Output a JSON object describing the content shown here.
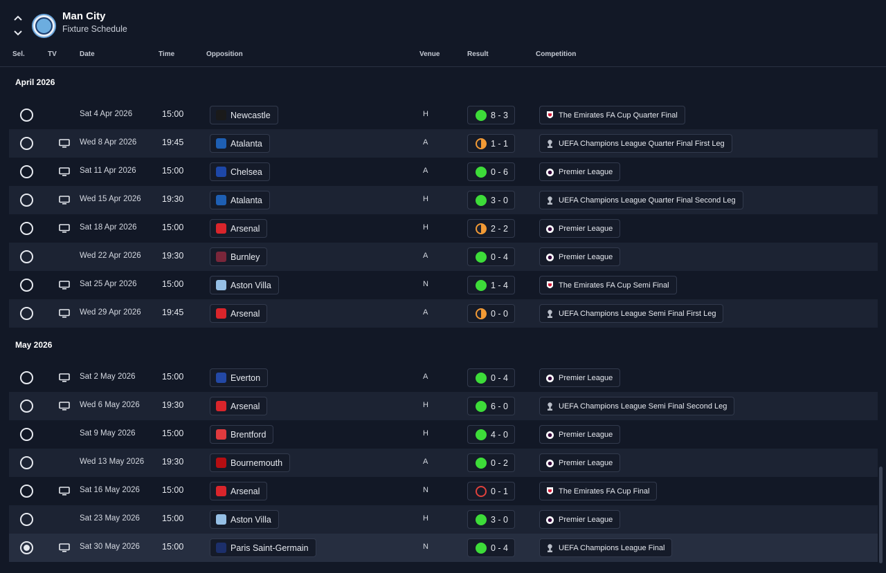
{
  "header": {
    "club_name": "Man City",
    "page_title": "Fixture Schedule"
  },
  "columns": {
    "sel": "Sel.",
    "tv": "TV",
    "date": "Date",
    "time": "Time",
    "opposition": "Opposition",
    "venue": "Venue",
    "result": "Result",
    "competition": "Competition"
  },
  "months": [
    {
      "label": "April 2026",
      "fixtures": [
        {
          "tv": false,
          "date": "Sat 4 Apr 2026",
          "time": "15:00",
          "opponent": "Newcastle",
          "crest": "#1a1a1a",
          "venue": "H",
          "outcome": "win",
          "score": "8 - 3",
          "competition": "The Emirates FA Cup Quarter Final",
          "comp_icon": "fa-cup-icon"
        },
        {
          "tv": true,
          "date": "Wed 8 Apr 2026",
          "time": "19:45",
          "opponent": "Atalanta",
          "crest": "#1e5fb3",
          "venue": "A",
          "outcome": "draw",
          "score": "1 - 1",
          "competition": "UEFA Champions League Quarter Final First Leg",
          "comp_icon": "ucl-trophy-icon"
        },
        {
          "tv": true,
          "date": "Sat 11 Apr 2026",
          "time": "15:00",
          "opponent": "Chelsea",
          "crest": "#1d47a8",
          "venue": "A",
          "outcome": "win",
          "score": "0 - 6",
          "competition": "Premier League",
          "comp_icon": "premier-league-icon"
        },
        {
          "tv": true,
          "date": "Wed 15 Apr 2026",
          "time": "19:30",
          "opponent": "Atalanta",
          "crest": "#1e5fb3",
          "venue": "H",
          "outcome": "win",
          "score": "3 - 0",
          "competition": "UEFA Champions League Quarter Final Second Leg",
          "comp_icon": "ucl-trophy-icon"
        },
        {
          "tv": true,
          "date": "Sat 18 Apr 2026",
          "time": "15:00",
          "opponent": "Arsenal",
          "crest": "#d9252b",
          "venue": "H",
          "outcome": "draw",
          "score": "2 - 2",
          "competition": "Premier League",
          "comp_icon": "premier-league-icon"
        },
        {
          "tv": false,
          "date": "Wed 22 Apr 2026",
          "time": "19:30",
          "opponent": "Burnley",
          "crest": "#7a263a",
          "venue": "A",
          "outcome": "win",
          "score": "0 - 4",
          "competition": "Premier League",
          "comp_icon": "premier-league-icon"
        },
        {
          "tv": true,
          "date": "Sat 25 Apr 2026",
          "time": "15:00",
          "opponent": "Aston Villa",
          "crest": "#95bfe5",
          "venue": "N",
          "outcome": "win",
          "score": "1 - 4",
          "competition": "The Emirates FA Cup Semi Final",
          "comp_icon": "fa-cup-icon"
        },
        {
          "tv": true,
          "date": "Wed 29 Apr 2026",
          "time": "19:45",
          "opponent": "Arsenal",
          "crest": "#d9252b",
          "venue": "A",
          "outcome": "draw",
          "score": "0 - 0",
          "competition": "UEFA Champions League Semi Final First Leg",
          "comp_icon": "ucl-trophy-icon"
        }
      ]
    },
    {
      "label": "May 2026",
      "fixtures": [
        {
          "tv": true,
          "date": "Sat 2 May 2026",
          "time": "15:00",
          "opponent": "Everton",
          "crest": "#2348a5",
          "venue": "A",
          "outcome": "win",
          "score": "0 - 4",
          "competition": "Premier League",
          "comp_icon": "premier-league-icon"
        },
        {
          "tv": true,
          "date": "Wed 6 May 2026",
          "time": "19:30",
          "opponent": "Arsenal",
          "crest": "#d9252b",
          "venue": "H",
          "outcome": "win",
          "score": "6 - 0",
          "competition": "UEFA Champions League Semi Final Second Leg",
          "comp_icon": "ucl-trophy-icon"
        },
        {
          "tv": false,
          "date": "Sat 9 May 2026",
          "time": "15:00",
          "opponent": "Brentford",
          "crest": "#e03a3e",
          "venue": "H",
          "outcome": "win",
          "score": "4 - 0",
          "competition": "Premier League",
          "comp_icon": "premier-league-icon"
        },
        {
          "tv": false,
          "date": "Wed 13 May 2026",
          "time": "19:30",
          "opponent": "Bournemouth",
          "crest": "#b50e12",
          "venue": "A",
          "outcome": "win",
          "score": "0 - 2",
          "competition": "Premier League",
          "comp_icon": "premier-league-icon"
        },
        {
          "tv": true,
          "date": "Sat 16 May 2026",
          "time": "15:00",
          "opponent": "Arsenal",
          "crest": "#d9252b",
          "venue": "N",
          "outcome": "loss",
          "score": "0 - 1",
          "competition": "The Emirates FA Cup Final",
          "comp_icon": "fa-cup-icon"
        },
        {
          "tv": false,
          "date": "Sat 23 May 2026",
          "time": "15:00",
          "opponent": "Aston Villa",
          "crest": "#95bfe5",
          "venue": "H",
          "outcome": "win",
          "score": "3 - 0",
          "competition": "Premier League",
          "comp_icon": "premier-league-icon"
        },
        {
          "tv": true,
          "date": "Sat 30 May 2026",
          "time": "15:00",
          "opponent": "Paris Saint-Germain",
          "crest": "#1c2f6b",
          "venue": "N",
          "outcome": "win",
          "score": "0 - 4",
          "competition": "UEFA Champions League Final",
          "comp_icon": "ucl-trophy-icon",
          "selected": true
        }
      ]
    }
  ]
}
